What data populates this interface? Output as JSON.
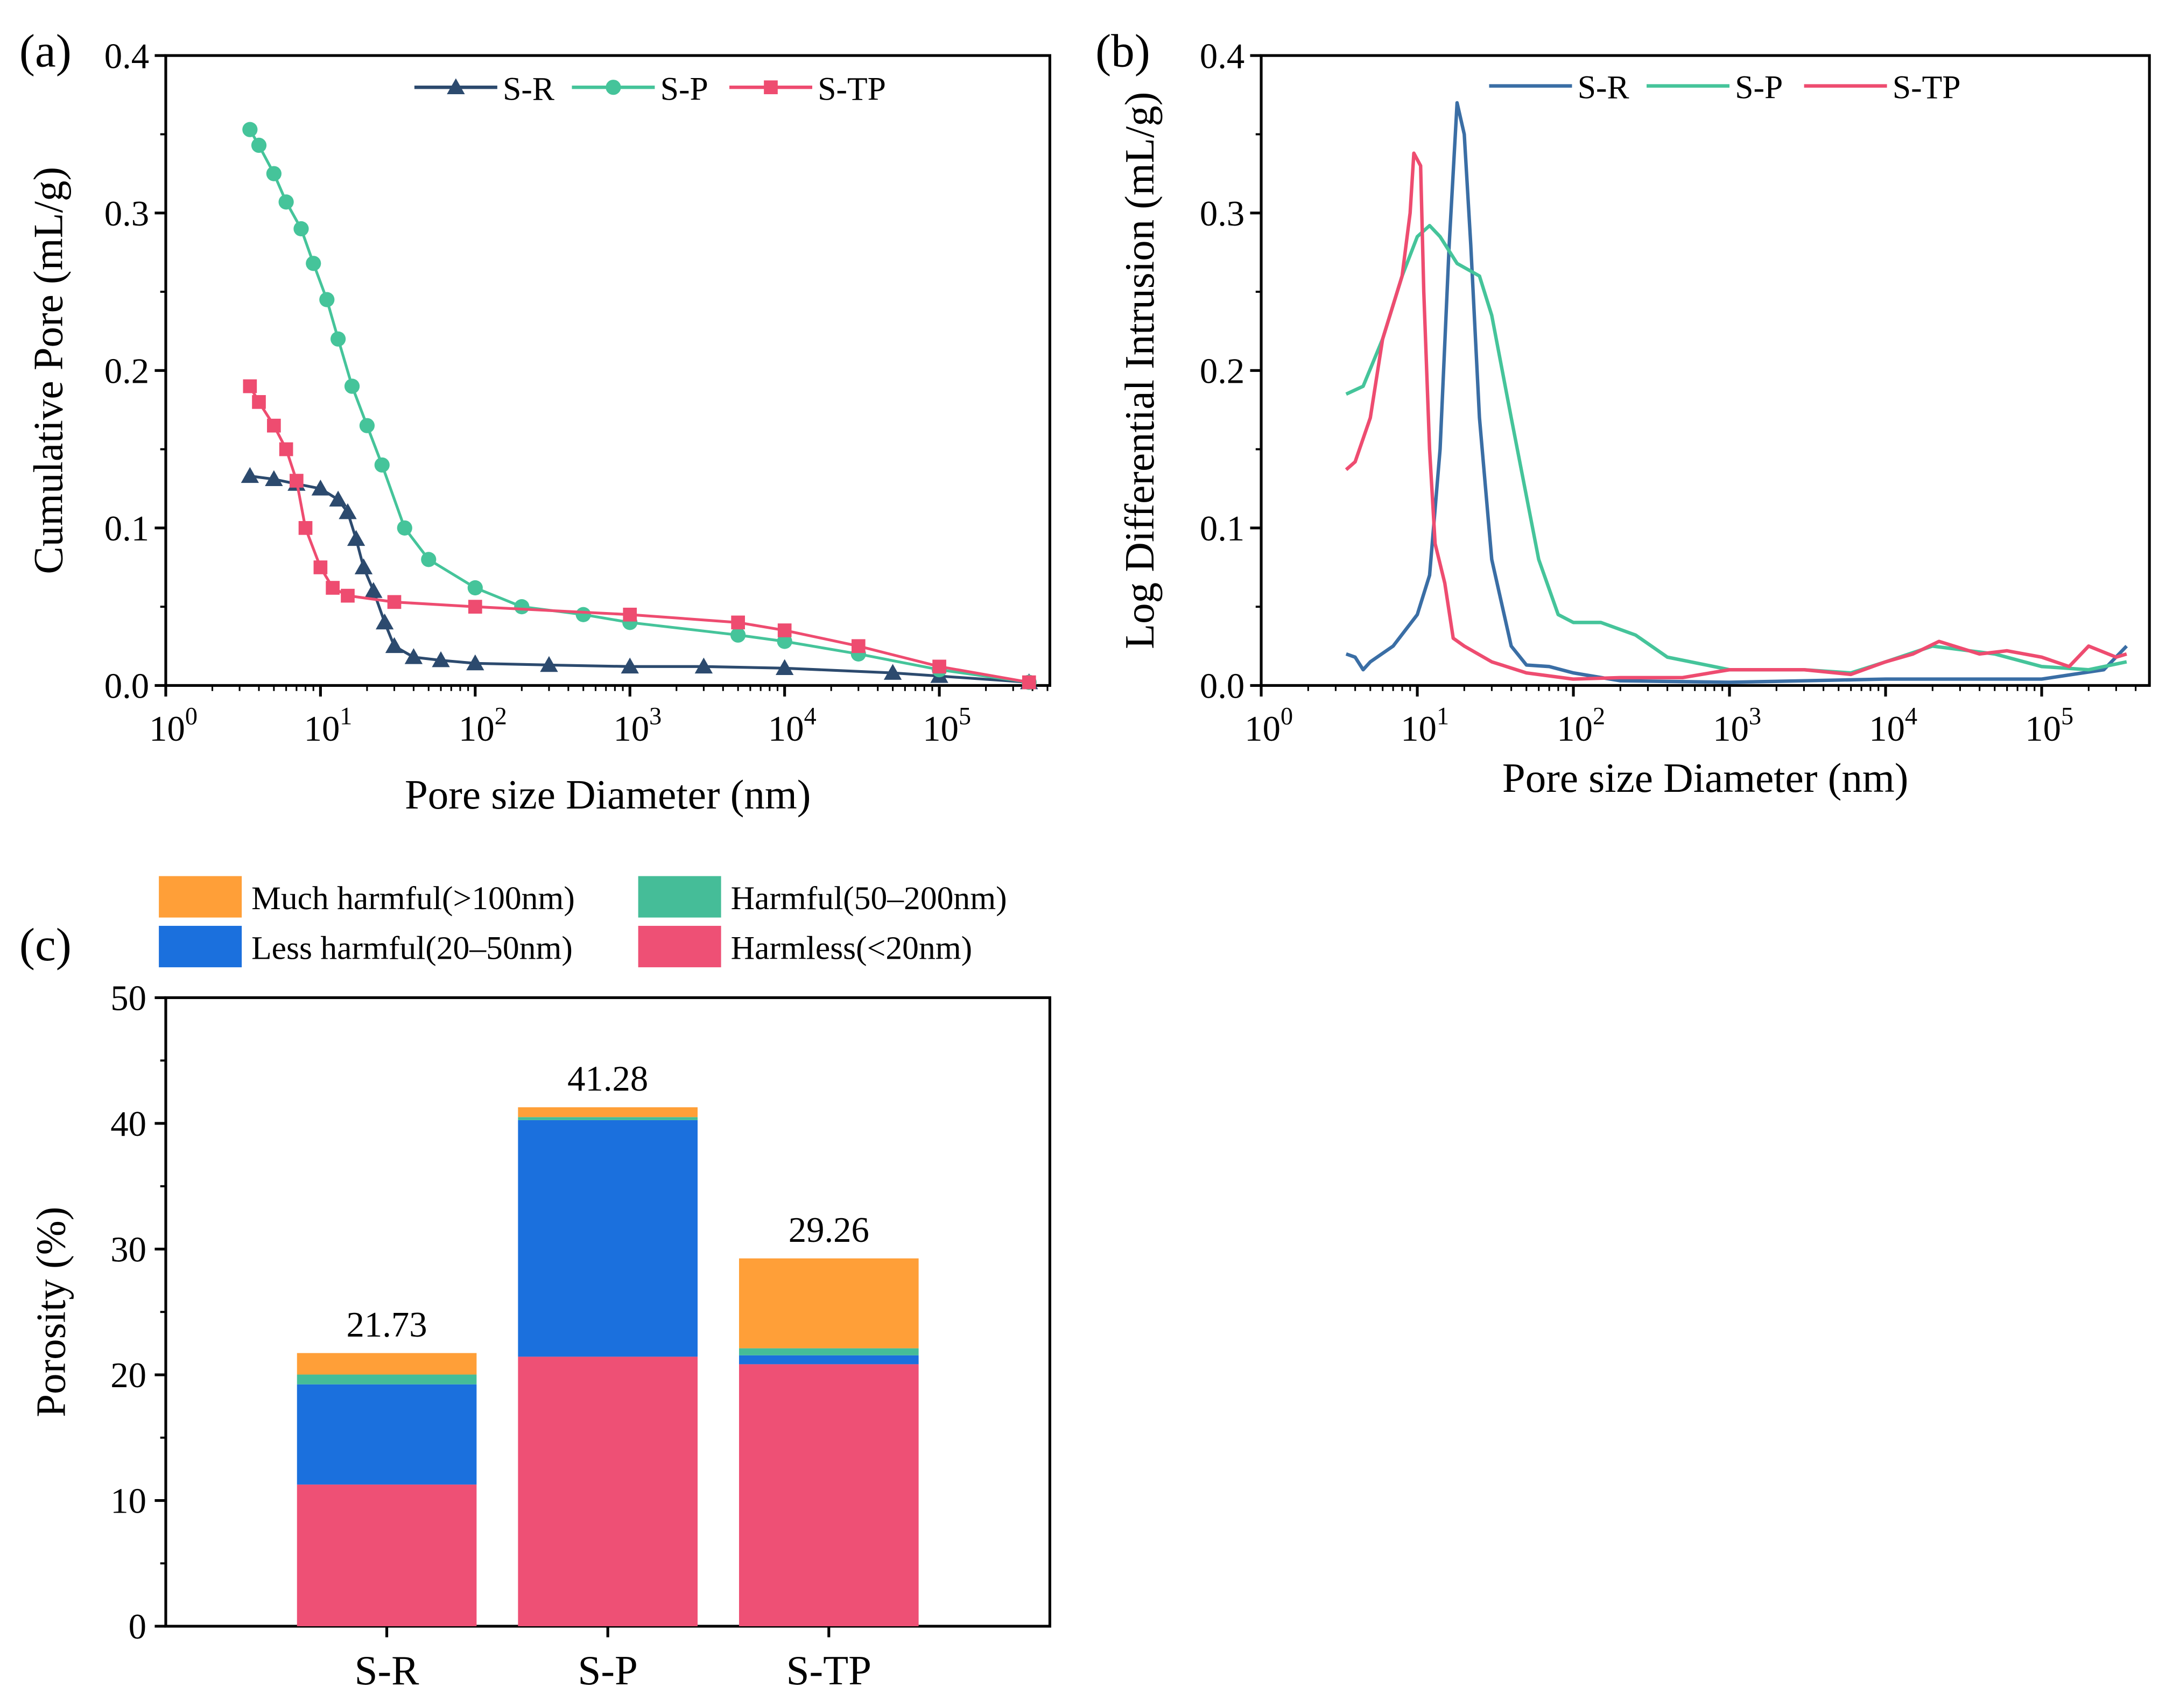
{
  "chart_data": [
    {
      "id": "a",
      "panel_label": "(a)",
      "type": "line",
      "xscale": "log",
      "xlabel": "Pore size Diameter (nm)",
      "ylabel": "Cumulative Pore (mL/g)",
      "xlim": [
        1,
        510000
      ],
      "ylim": [
        0,
        0.4
      ],
      "xticks": [
        {
          "base": "10",
          "exp": "0",
          "v": 1
        },
        {
          "base": "10",
          "exp": "1",
          "v": 10
        },
        {
          "base": "10",
          "exp": "2",
          "v": 100
        },
        {
          "base": "10",
          "exp": "3",
          "v": 1000
        },
        {
          "base": "10",
          "exp": "4",
          "v": 10000
        },
        {
          "base": "10",
          "exp": "5",
          "v": 100000
        }
      ],
      "yticks": [
        "0.0",
        "0.1",
        "0.2",
        "0.3",
        "0.4"
      ],
      "legend_position": "top-center",
      "series": [
        {
          "name": "S-R",
          "color": "#2c4a6e",
          "marker": "triangle",
          "points": [
            [
              3.5,
              0.133
            ],
            [
              5,
              0.131
            ],
            [
              7,
              0.128
            ],
            [
              10,
              0.125
            ],
            [
              13,
              0.118
            ],
            [
              15,
              0.11
            ],
            [
              17,
              0.093
            ],
            [
              19,
              0.075
            ],
            [
              22,
              0.06
            ],
            [
              26,
              0.04
            ],
            [
              30,
              0.025
            ],
            [
              40,
              0.018
            ],
            [
              60,
              0.016
            ],
            [
              100,
              0.014
            ],
            [
              300,
              0.013
            ],
            [
              1000,
              0.012
            ],
            [
              3000,
              0.012
            ],
            [
              10000,
              0.011
            ],
            [
              50000,
              0.008
            ],
            [
              100000,
              0.006
            ],
            [
              380000,
              0.002
            ]
          ]
        },
        {
          "name": "S-P",
          "color": "#45c49a",
          "marker": "circle",
          "points": [
            [
              3.5,
              0.353
            ],
            [
              4,
              0.343
            ],
            [
              5,
              0.325
            ],
            [
              6,
              0.307
            ],
            [
              7.5,
              0.29
            ],
            [
              9,
              0.268
            ],
            [
              11,
              0.245
            ],
            [
              13,
              0.22
            ],
            [
              16,
              0.19
            ],
            [
              20,
              0.165
            ],
            [
              25,
              0.14
            ],
            [
              35,
              0.1
            ],
            [
              50,
              0.08
            ],
            [
              100,
              0.062
            ],
            [
              200,
              0.05
            ],
            [
              500,
              0.045
            ],
            [
              1000,
              0.04
            ],
            [
              5000,
              0.032
            ],
            [
              10000,
              0.028
            ],
            [
              30000,
              0.02
            ],
            [
              100000,
              0.01
            ],
            [
              380000,
              0.002
            ]
          ]
        },
        {
          "name": "S-TP",
          "color": "#ee4c70",
          "marker": "square",
          "points": [
            [
              3.5,
              0.19
            ],
            [
              4,
              0.18
            ],
            [
              5,
              0.165
            ],
            [
              6,
              0.15
            ],
            [
              7,
              0.13
            ],
            [
              8,
              0.1
            ],
            [
              10,
              0.075
            ],
            [
              12,
              0.062
            ],
            [
              15,
              0.057
            ],
            [
              30,
              0.053
            ],
            [
              100,
              0.05
            ],
            [
              1000,
              0.045
            ],
            [
              5000,
              0.04
            ],
            [
              10000,
              0.035
            ],
            [
              30000,
              0.025
            ],
            [
              100000,
              0.012
            ],
            [
              380000,
              0.002
            ]
          ]
        }
      ]
    },
    {
      "id": "b",
      "panel_label": "(b)",
      "type": "line",
      "xscale": "log",
      "xlabel": "Pore size Diameter (nm)",
      "ylabel": "Log Differential Intrusion (mL/g)",
      "xlim": [
        1,
        500000
      ],
      "ylim": [
        0,
        0.4
      ],
      "xticks": [
        {
          "base": "10",
          "exp": "0",
          "v": 1
        },
        {
          "base": "10",
          "exp": "1",
          "v": 10
        },
        {
          "base": "10",
          "exp": "2",
          "v": 100
        },
        {
          "base": "10",
          "exp": "3",
          "v": 1000
        },
        {
          "base": "10",
          "exp": "4",
          "v": 10000
        },
        {
          "base": "10",
          "exp": "5",
          "v": 100000
        }
      ],
      "yticks": [
        "0.0",
        "0.1",
        "0.2",
        "0.3",
        "0.4"
      ],
      "legend_position": "top-center",
      "series": [
        {
          "name": "S-R",
          "color": "#3a6ea5",
          "points": [
            [
              3.5,
              0.02
            ],
            [
              4,
              0.018
            ],
            [
              4.5,
              0.01
            ],
            [
              5,
              0.015
            ],
            [
              7,
              0.025
            ],
            [
              10,
              0.045
            ],
            [
              12,
              0.07
            ],
            [
              14,
              0.15
            ],
            [
              16,
              0.28
            ],
            [
              18,
              0.37
            ],
            [
              20,
              0.35
            ],
            [
              22,
              0.28
            ],
            [
              25,
              0.17
            ],
            [
              30,
              0.08
            ],
            [
              40,
              0.025
            ],
            [
              50,
              0.013
            ],
            [
              70,
              0.012
            ],
            [
              100,
              0.008
            ],
            [
              200,
              0.003
            ],
            [
              1000,
              0.002
            ],
            [
              10000,
              0.004
            ],
            [
              100000,
              0.004
            ],
            [
              250000,
              0.01
            ],
            [
              350000,
              0.025
            ]
          ]
        },
        {
          "name": "S-P",
          "color": "#45c49a",
          "points": [
            [
              3.5,
              0.185
            ],
            [
              4.5,
              0.19
            ],
            [
              6,
              0.22
            ],
            [
              8,
              0.26
            ],
            [
              10,
              0.285
            ],
            [
              12,
              0.292
            ],
            [
              14,
              0.285
            ],
            [
              18,
              0.268
            ],
            [
              25,
              0.26
            ],
            [
              30,
              0.235
            ],
            [
              40,
              0.17
            ],
            [
              60,
              0.08
            ],
            [
              80,
              0.045
            ],
            [
              100,
              0.04
            ],
            [
              150,
              0.04
            ],
            [
              250,
              0.032
            ],
            [
              400,
              0.018
            ],
            [
              1000,
              0.01
            ],
            [
              3000,
              0.01
            ],
            [
              6000,
              0.008
            ],
            [
              10000,
              0.015
            ],
            [
              20000,
              0.025
            ],
            [
              50000,
              0.02
            ],
            [
              100000,
              0.012
            ],
            [
              200000,
              0.01
            ],
            [
              350000,
              0.015
            ]
          ]
        },
        {
          "name": "S-TP",
          "color": "#ee4c70",
          "points": [
            [
              3.5,
              0.137
            ],
            [
              4,
              0.142
            ],
            [
              5,
              0.17
            ],
            [
              6,
              0.22
            ],
            [
              8,
              0.26
            ],
            [
              9,
              0.3
            ],
            [
              9.5,
              0.338
            ],
            [
              10.5,
              0.33
            ],
            [
              11,
              0.25
            ],
            [
              12,
              0.15
            ],
            [
              13,
              0.09
            ],
            [
              15,
              0.065
            ],
            [
              17,
              0.03
            ],
            [
              20,
              0.025
            ],
            [
              30,
              0.015
            ],
            [
              50,
              0.008
            ],
            [
              100,
              0.004
            ],
            [
              200,
              0.005
            ],
            [
              500,
              0.005
            ],
            [
              1000,
              0.01
            ],
            [
              3000,
              0.01
            ],
            [
              6000,
              0.007
            ],
            [
              10000,
              0.015
            ],
            [
              15000,
              0.02
            ],
            [
              22000,
              0.028
            ],
            [
              40000,
              0.02
            ],
            [
              60000,
              0.022
            ],
            [
              100000,
              0.018
            ],
            [
              150000,
              0.012
            ],
            [
              200000,
              0.025
            ],
            [
              300000,
              0.018
            ],
            [
              350000,
              0.02
            ]
          ]
        }
      ]
    },
    {
      "id": "c",
      "panel_label": "(c)",
      "type": "bar",
      "stacked": true,
      "ylabel": "Porosity (%)",
      "ylim": [
        0,
        50
      ],
      "yticks": [
        "0",
        "10",
        "20",
        "30",
        "40",
        "50"
      ],
      "categories": [
        "S-R",
        "S-P",
        "S-TP"
      ],
      "totals": [
        "21.73",
        "41.28",
        "29.26"
      ],
      "legend_position": "top",
      "series": [
        {
          "name": "Harmless(<20nm)",
          "color": "#ee5075",
          "values": [
            11.27,
            21.44,
            20.84
          ]
        },
        {
          "name": "Less harmful(20–50nm)",
          "color": "#1b70dd",
          "values": [
            7.97,
            18.82,
            0.71
          ]
        },
        {
          "name": "Harmful(50–200nm)",
          "color": "#45bd98",
          "values": [
            0.78,
            0.24,
            0.56
          ]
        },
        {
          "name": "Much harmful(>100nm)",
          "color": "#ff9f38",
          "values": [
            1.71,
            0.78,
            7.15
          ]
        }
      ]
    }
  ]
}
